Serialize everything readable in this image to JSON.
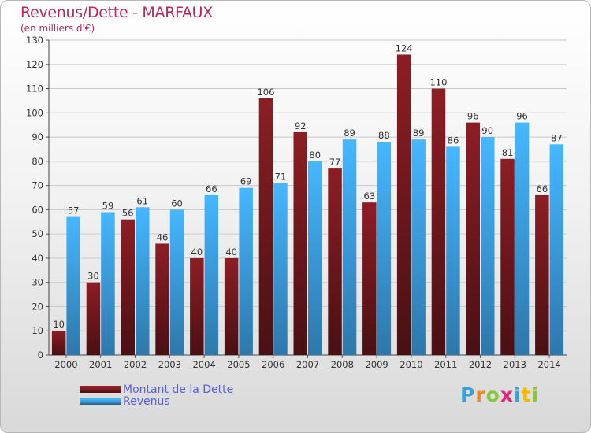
{
  "title": "Revenus/Dette - MARFAUX",
  "subtitle": "(en milliers d'€)",
  "brand": {
    "text": "Proxiti",
    "letters": [
      {
        "ch": "P",
        "color": "#3aa0d8"
      },
      {
        "ch": "r",
        "color": "#f08a1c"
      },
      {
        "ch": "o",
        "color": "#8bc53f"
      },
      {
        "ch": "x",
        "color": "#e2247a"
      },
      {
        "ch": "i",
        "color": "#3aa0d8"
      },
      {
        "ch": "t",
        "color": "#f5b800"
      },
      {
        "ch": "i",
        "color": "#8bc53f"
      }
    ]
  },
  "chart_data": {
    "type": "bar",
    "categories": [
      "2000",
      "2001",
      "2002",
      "2003",
      "2004",
      "2005",
      "2006",
      "2007",
      "2008",
      "2009",
      "2010",
      "2011",
      "2012",
      "2013",
      "2014"
    ],
    "series": [
      {
        "name": "Montant de la Dette",
        "color": "#7a1a1f",
        "values": [
          10,
          30,
          56,
          46,
          40,
          40,
          106,
          92,
          77,
          63,
          124,
          110,
          96,
          81,
          66
        ]
      },
      {
        "name": "Revenus",
        "color": "#3d9fe3",
        "values": [
          57,
          59,
          61,
          60,
          66,
          69,
          71,
          80,
          89,
          88,
          89,
          86,
          90,
          96,
          87
        ]
      }
    ],
    "ylim": [
      0,
      130
    ],
    "yticks": [
      0,
      10,
      20,
      30,
      40,
      50,
      60,
      70,
      80,
      90,
      100,
      110,
      120,
      130
    ],
    "grid": true,
    "legend_position": "bottom-left"
  }
}
